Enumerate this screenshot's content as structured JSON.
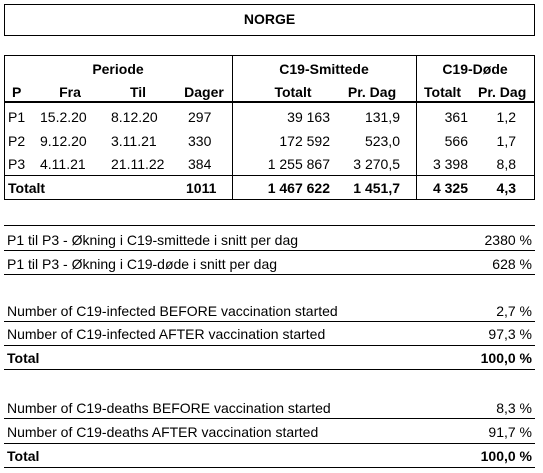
{
  "title": "NORGE",
  "groups": {
    "periode": "Periode",
    "smittede": "C19-Smittede",
    "dode": "C19-Døde"
  },
  "columns": {
    "p": "P",
    "fra": "Fra",
    "til": "Til",
    "dager": "Dager",
    "smitte_totalt": "Totalt",
    "smitte_per_dag": "Pr. Dag",
    "dode_totalt": "Totalt",
    "dode_per_dag": "Pr. Dag"
  },
  "rows": [
    {
      "p": "P1",
      "fra": "15.2.20",
      "til": "8.12.20",
      "dager": "297",
      "smitte_totalt": "39 163",
      "smitte_per_dag": "131,9",
      "dode_totalt": "361",
      "dode_per_dag": "1,2"
    },
    {
      "p": "P2",
      "fra": "9.12.20",
      "til": "3.11.21",
      "dager": "330",
      "smitte_totalt": "172 592",
      "smitte_per_dag": "523,0",
      "dode_totalt": "566",
      "dode_per_dag": "1,7"
    },
    {
      "p": "P3",
      "fra": "4.11.21",
      "til": "21.11.22",
      "dager": "384",
      "smitte_totalt": "1 255 867",
      "smitte_per_dag": "3 270,5",
      "dode_totalt": "3 398",
      "dode_per_dag": "8,8"
    }
  ],
  "total": {
    "label": "Totalt",
    "dager": "1011",
    "smitte_totalt": "1 467 622",
    "smitte_per_dag": "1 451,7",
    "dode_totalt": "4 325",
    "dode_per_dag": "4,3"
  },
  "increase": [
    {
      "label": "P1 til P3 - Økning i C19-smittede i snitt per dag",
      "value": "2380 %"
    },
    {
      "label": "P1 til P3 - Økning i C19-døde i snitt per dag",
      "value": "628 %"
    }
  ],
  "infected": {
    "before": {
      "label": "Number of C19-infected BEFORE vaccination started",
      "value": "2,7 %"
    },
    "after": {
      "label": "Number of C19-infected AFTER vaccination started",
      "value": "97,3 %"
    },
    "total": {
      "label": "Total",
      "value": "100,0 %"
    }
  },
  "deaths": {
    "before": {
      "label": "Number of C19-deaths BEFORE vaccination started",
      "value": "8,3 %"
    },
    "after": {
      "label": "Number of C19-deaths AFTER vaccination started",
      "value": "91,7 %"
    },
    "total": {
      "label": "Total",
      "value": "100,0 %"
    }
  }
}
